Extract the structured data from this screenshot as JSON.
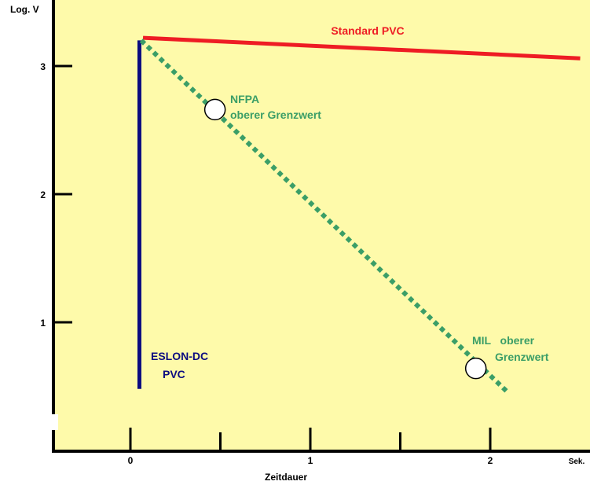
{
  "colors": {
    "plot_background": "#FEFAAA",
    "page_background": "#FFFFFF",
    "axis": "#000000",
    "standard_pvc": "#EE1C24",
    "eslon_dc": "#0B0B80",
    "limit_line": "#3B9E67",
    "limit_text": "#3B9E67",
    "marker_fill": "#FFFFFF"
  },
  "chart_data": {
    "type": "line",
    "title": "",
    "xlabel": "Zeitdauer",
    "ylabel": "Log. V",
    "x_unit": "Sek.",
    "xlim": [
      -0.42,
      2.52
    ],
    "ylim": [
      0.1,
      3.4
    ],
    "x_ticks": [
      0,
      1,
      2
    ],
    "x_tick_labels": [
      "0",
      "1",
      "2"
    ],
    "y_ticks": [
      1,
      2,
      3
    ],
    "y_tick_labels": [
      "1",
      "2",
      "3"
    ],
    "grid": false,
    "series": [
      {
        "name": "Standard PVC",
        "color_key": "standard_pvc",
        "style": "solid",
        "x": [
          0.07,
          2.5
        ],
        "y": [
          3.22,
          3.06
        ]
      },
      {
        "name": "ESLON-DC PVC",
        "color_key": "eslon_dc",
        "style": "solid",
        "x": [
          0.05,
          0.05
        ],
        "y": [
          3.2,
          0.48
        ]
      },
      {
        "name": "",
        "color_key": "limit_line",
        "style": "dotted",
        "x": [
          0.06,
          2.1
        ],
        "y": [
          3.2,
          0.45
        ]
      }
    ],
    "markers": [
      {
        "x": 0.47,
        "y": 2.66
      },
      {
        "x": 1.92,
        "y": 0.64
      }
    ],
    "annotations": {
      "standard_pvc": "Standard PVC",
      "nfpa_line1": "NFPA",
      "nfpa_line2": "oberer Grenzwert",
      "mil_line1": "MIL   oberer",
      "mil_line2": "Grenzwert",
      "eslon_line1": "ESLON-DC",
      "eslon_line2": "PVC"
    }
  }
}
